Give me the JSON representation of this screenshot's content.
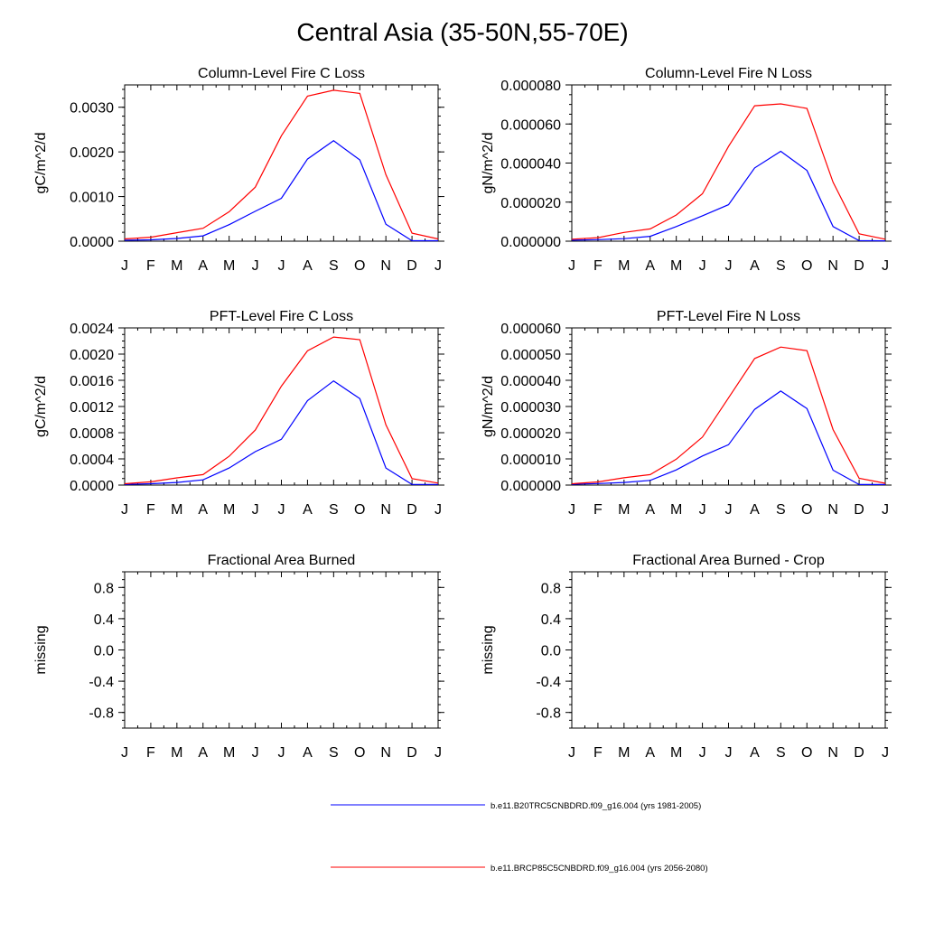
{
  "title": "Central Asia (35-50N,55-70E)",
  "colors": {
    "series1": "#0000ff",
    "series2": "#ff0000"
  },
  "legend": [
    {
      "label": "b.e11.B20TRC5CNBDRD.f09_g16.004 (yrs 1981-2005)",
      "color": "#0000ff"
    },
    {
      "label": "b.e11.BRCP85C5CNBDRD.f09_g16.004 (yrs 2056-2080)",
      "color": "#ff0000"
    }
  ],
  "chart_data": [
    {
      "type": "line",
      "title": "Column-Level Fire C Loss",
      "xlabel": "",
      "ylabel": "gC/m^2/d",
      "categories": [
        "J",
        "F",
        "M",
        "A",
        "M",
        "J",
        "J",
        "A",
        "S",
        "O",
        "N",
        "D",
        "J"
      ],
      "ylim": [
        0,
        0.0035
      ],
      "yticks": [
        0,
        0.001,
        0.002,
        0.003
      ],
      "ytick_labels": [
        "0.0000",
        "0.0010",
        "0.0020",
        "0.0030"
      ],
      "yminor": 0.0002,
      "series": [
        {
          "name": "b.e11.B20TRC5CNBDRD.f09_g16.004 (yrs 1981-2005)",
          "values": [
            2e-05,
            3e-05,
            6e-05,
            0.00012,
            0.00037,
            0.00067,
            0.00096,
            0.00184,
            0.00225,
            0.00182,
            0.00038,
            1e-05,
            1e-05
          ]
        },
        {
          "name": "b.e11.BRCP85C5CNBDRD.f09_g16.004 (yrs 2056-2080)",
          "values": [
            5e-05,
            9e-05,
            0.00019,
            0.00029,
            0.00066,
            0.00121,
            0.00236,
            0.00325,
            0.00338,
            0.00331,
            0.00149,
            0.00018,
            5e-05
          ]
        }
      ]
    },
    {
      "type": "line",
      "title": "Column-Level Fire N Loss",
      "xlabel": "",
      "ylabel": "gN/m^2/d",
      "categories": [
        "J",
        "F",
        "M",
        "A",
        "M",
        "J",
        "J",
        "A",
        "S",
        "O",
        "N",
        "D",
        "J"
      ],
      "ylim": [
        0,
        8e-05
      ],
      "yticks": [
        0,
        2e-05,
        4e-05,
        6e-05,
        8e-05
      ],
      "ytick_labels": [
        "0.000000",
        "0.000020",
        "0.000040",
        "0.000060",
        "0.000080"
      ],
      "yminor": 5e-06,
      "series": [
        {
          "name": "b.e11.B20TRC5CNBDRD.f09_g16.004 (yrs 1981-2005)",
          "values": [
            5e-07,
            8e-07,
            1.3e-06,
            2.5e-06,
            7.5e-06,
            1.3e-05,
            1.87e-05,
            3.75e-05,
            4.6e-05,
            3.62e-05,
            7.5e-06,
            3e-07,
            2e-07
          ]
        },
        {
          "name": "b.e11.BRCP85C5CNBDRD.f09_g16.004 (yrs 2056-2080)",
          "values": [
            1e-06,
            1.8e-06,
            4.5e-06,
            6.3e-06,
            1.34e-05,
            2.43e-05,
            4.85e-05,
            6.93e-05,
            7.03e-05,
            6.8e-05,
            3.02e-05,
            3.8e-06,
            1e-06
          ]
        }
      ]
    },
    {
      "type": "line",
      "title": "PFT-Level Fire C Loss",
      "xlabel": "",
      "ylabel": "gC/m^2/d",
      "categories": [
        "J",
        "F",
        "M",
        "A",
        "M",
        "J",
        "J",
        "A",
        "S",
        "O",
        "N",
        "D",
        "J"
      ],
      "ylim": [
        0,
        0.0024
      ],
      "yticks": [
        0,
        0.0004,
        0.0008,
        0.0012,
        0.0016,
        0.002,
        0.0024
      ],
      "ytick_labels": [
        "0.0000",
        "0.0004",
        "0.0008",
        "0.0012",
        "0.0016",
        "0.0020",
        "0.0024"
      ],
      "yminor": 0.0001,
      "series": [
        {
          "name": "b.e11.B20TRC5CNBDRD.f09_g16.004 (yrs 1981-2005)",
          "values": [
            1e-05,
            2e-05,
            4e-05,
            8e-05,
            0.00026,
            0.00051,
            0.0007,
            0.00129,
            0.00159,
            0.00132,
            0.00026,
            1e-05,
            1e-05
          ]
        },
        {
          "name": "b.e11.BRCP85C5CNBDRD.f09_g16.004 (yrs 2056-2080)",
          "values": [
            2e-05,
            5e-05,
            0.00011,
            0.00016,
            0.00044,
            0.00084,
            0.00151,
            0.00205,
            0.00226,
            0.00222,
            0.00092,
            0.0001,
            3e-05
          ]
        }
      ]
    },
    {
      "type": "line",
      "title": "PFT-Level Fire N Loss",
      "xlabel": "",
      "ylabel": "gN/m^2/d",
      "categories": [
        "J",
        "F",
        "M",
        "A",
        "M",
        "J",
        "J",
        "A",
        "S",
        "O",
        "N",
        "D",
        "J"
      ],
      "ylim": [
        0,
        6e-05
      ],
      "yticks": [
        0,
        1e-05,
        2e-05,
        3e-05,
        4e-05,
        5e-05,
        6e-05
      ],
      "ytick_labels": [
        "0.000000",
        "0.000010",
        "0.000020",
        "0.000030",
        "0.000040",
        "0.000050",
        "0.000060"
      ],
      "yminor": 2.5e-06,
      "series": [
        {
          "name": "b.e11.B20TRC5CNBDRD.f09_g16.004 (yrs 1981-2005)",
          "values": [
            3e-07,
            6e-07,
            1e-06,
            1.8e-06,
            5.8e-06,
            1.11e-05,
            1.54e-05,
            2.89e-05,
            3.59e-05,
            2.92e-05,
            5.7e-06,
            2e-07,
            2e-07
          ]
        },
        {
          "name": "b.e11.BRCP85C5CNBDRD.f09_g16.004 (yrs 2056-2080)",
          "values": [
            5e-07,
            1.2e-06,
            2.8e-06,
            4e-06,
            9.9e-06,
            1.83e-05,
            3.33e-05,
            4.83e-05,
            5.27e-05,
            5.13e-05,
            2.12e-05,
            2.6e-06,
            7e-07
          ]
        }
      ]
    },
    {
      "type": "line",
      "title": "Fractional Area Burned",
      "xlabel": "",
      "ylabel": "missing",
      "categories": [
        "J",
        "F",
        "M",
        "A",
        "M",
        "J",
        "J",
        "A",
        "S",
        "O",
        "N",
        "D",
        "J"
      ],
      "ylim": [
        -1,
        1
      ],
      "yticks": [
        -0.8,
        -0.4,
        0,
        0.4,
        0.8
      ],
      "ytick_labels": [
        "-0.8",
        "-0.4",
        "0.0",
        "0.4",
        "0.8"
      ],
      "yminor": 0.1,
      "series": []
    },
    {
      "type": "line",
      "title": "Fractional Area Burned - Crop",
      "xlabel": "",
      "ylabel": "missing",
      "categories": [
        "J",
        "F",
        "M",
        "A",
        "M",
        "J",
        "J",
        "A",
        "S",
        "O",
        "N",
        "D",
        "J"
      ],
      "ylim": [
        -1,
        1
      ],
      "yticks": [
        -0.8,
        -0.4,
        0,
        0.4,
        0.8
      ],
      "ytick_labels": [
        "-0.8",
        "-0.4",
        "0.0",
        "0.4",
        "0.8"
      ],
      "yminor": 0.1,
      "series": []
    }
  ]
}
